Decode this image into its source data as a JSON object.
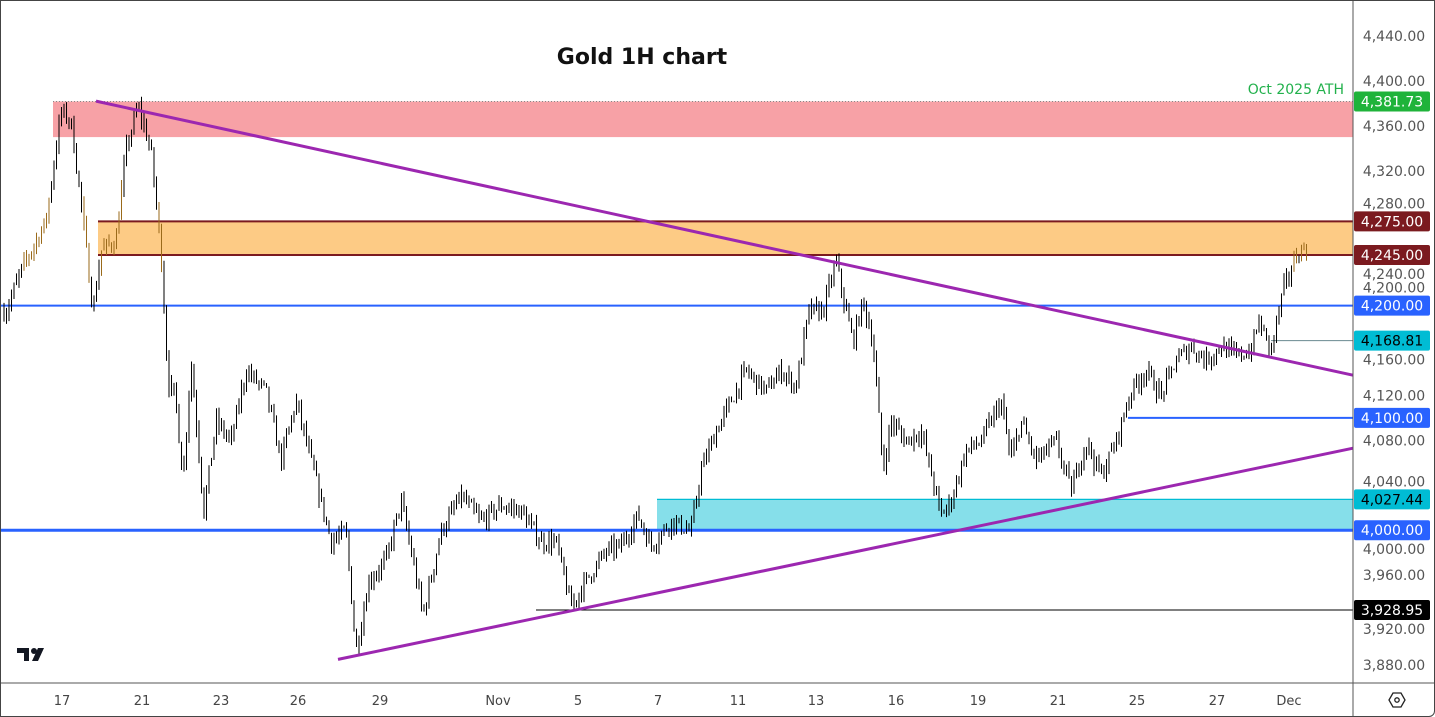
{
  "title": "Gold 1H chart",
  "chart_data": {
    "type": "candlestick",
    "title": "Gold 1H chart",
    "timeframe": "1H",
    "y_ticks": [
      "4,440.00",
      "4,400.00",
      "4,360.00",
      "4,320.00",
      "4,280.00",
      "4,240.00",
      "4,200.00",
      "4,160.00",
      "4,120.00",
      "4,080.00",
      "4,040.00",
      "4,000.00",
      "3,960.00",
      "3,920.00",
      "3,880.00"
    ],
    "ylim": [
      3865,
      4470
    ],
    "x_ticks": [
      "17",
      "21",
      "23",
      "26",
      "29",
      "Nov",
      "5",
      "7",
      "11",
      "13",
      "16",
      "19",
      "21",
      "25",
      "27",
      "Dec"
    ],
    "price_path_approx": [
      4195,
      4231,
      4275,
      4373,
      4364,
      4293,
      4195,
      4249,
      4258,
      4338,
      4378,
      4338,
      4249,
      4133,
      4115,
      4044,
      4151,
      4017,
      4097,
      4079,
      4142,
      4124,
      4062,
      4115,
      4062,
      3990,
      3999,
      3892,
      3955,
      3973,
      4026,
      3973,
      3924,
      3999,
      4030,
      4008,
      4022,
      4017,
      3990,
      3990,
      3932,
      3955,
      3981,
      3986,
      4013,
      3986,
      4008,
      3999,
      4053,
      4088,
      4115,
      4142,
      4124,
      4142,
      4128,
      4195,
      4195,
      4240,
      4195,
      4168,
      4204,
      4168,
      4053,
      4097,
      4079,
      4088,
      4044,
      4013,
      4026,
      4071,
      4079,
      4115,
      4062,
      4097,
      4062,
      4079,
      4035,
      4079,
      4048,
      4079,
      4124,
      4142,
      4120,
      4151,
      4164,
      4151,
      4164,
      4155,
      4160,
      4186,
      4160,
      4213,
      4244,
      4253
    ],
    "zones": [
      {
        "name": "ath-zone",
        "from": 4350,
        "to": 4381.73,
        "color": "#f7a1a6"
      },
      {
        "name": "resistance-zone",
        "from": 4245,
        "to": 4275,
        "color": "#fdcb85",
        "border": "#7b1a1f"
      },
      {
        "name": "support-zone",
        "from": 4000,
        "to": 4027.44,
        "color": "#86dfea",
        "border": "#00bcd4"
      }
    ],
    "horizontal_lines": [
      {
        "price": 4200,
        "color": "#2962ff"
      },
      {
        "price": 4100,
        "color": "#2962ff"
      },
      {
        "price": 4000,
        "color": "#2962ff"
      },
      {
        "price": 4168.81,
        "color": "#00bcd4"
      },
      {
        "price": 3928.95,
        "color": "#000000"
      }
    ],
    "trendlines": [
      {
        "name": "descending-trendline",
        "from_price": 4382,
        "to_price": 4138,
        "color": "#9c27b0"
      },
      {
        "name": "ascending-trendline",
        "from_price": 3885,
        "to_price": 4073,
        "color": "#9c27b0"
      }
    ],
    "annotation": "Oct 2025 ATH",
    "price_badges": [
      {
        "label": "4,381.73",
        "bg": "#1fb33a",
        "fg": "#ffffff"
      },
      {
        "label": "4,275.00",
        "bg": "#7b1a1f",
        "fg": "#ffffff"
      },
      {
        "label": "4,245.00",
        "bg": "#7b1a1f",
        "fg": "#ffffff"
      },
      {
        "label": "4,200.00",
        "bg": "#2962ff",
        "fg": "#ffffff"
      },
      {
        "label": "4,168.81",
        "bg": "#00bcd4",
        "fg": "#000000"
      },
      {
        "label": "4,100.00",
        "bg": "#2962ff",
        "fg": "#ffffff"
      },
      {
        "label": "4,027.44",
        "bg": "#00bcd4",
        "fg": "#000000"
      },
      {
        "label": "4,000.00",
        "bg": "#2962ff",
        "fg": "#ffffff"
      },
      {
        "label": "3,928.95",
        "bg": "#000000",
        "fg": "#ffffff"
      }
    ]
  },
  "icons": {
    "logo": "tradingview-logo",
    "settings": "settings-hexagon-icon"
  }
}
